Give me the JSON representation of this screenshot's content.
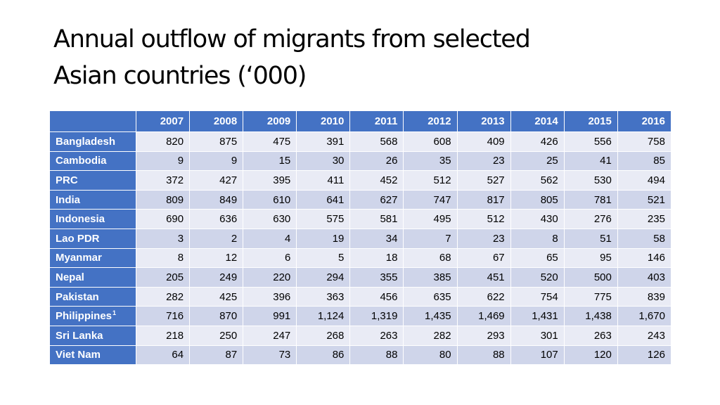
{
  "title_lines": [
    "Annual outflow of migrants from selected",
    "Asian countries (‘000)"
  ],
  "table": {
    "corner_label": "",
    "years": [
      "2007",
      "2008",
      "2009",
      "2010",
      "2011",
      "2012",
      "2013",
      "2014",
      "2015",
      "2016"
    ],
    "rows": [
      {
        "country": "Bangladesh",
        "footnote": "",
        "values": [
          "820",
          "875",
          "475",
          "391",
          "568",
          "608",
          "409",
          "426",
          "556",
          "758"
        ]
      },
      {
        "country": "Cambodia",
        "footnote": "",
        "values": [
          "9",
          "9",
          "15",
          "30",
          "26",
          "35",
          "23",
          "25",
          "41",
          "85"
        ]
      },
      {
        "country": "PRC",
        "footnote": "",
        "values": [
          "372",
          "427",
          "395",
          "411",
          "452",
          "512",
          "527",
          "562",
          "530",
          "494"
        ]
      },
      {
        "country": "India",
        "footnote": "",
        "values": [
          "809",
          "849",
          "610",
          "641",
          "627",
          "747",
          "817",
          "805",
          "781",
          "521"
        ]
      },
      {
        "country": "Indonesia",
        "footnote": "",
        "values": [
          "690",
          "636",
          "630",
          "575",
          "581",
          "495",
          "512",
          "430",
          "276",
          "235"
        ]
      },
      {
        "country": "Lao PDR",
        "footnote": "",
        "values": [
          "3",
          "2",
          "4",
          "19",
          "34",
          "7",
          "23",
          "8",
          "51",
          "58"
        ]
      },
      {
        "country": "Myanmar",
        "footnote": "",
        "values": [
          "8",
          "12",
          "6",
          "5",
          "18",
          "68",
          "67",
          "65",
          "95",
          "146"
        ]
      },
      {
        "country": "Nepal",
        "footnote": "",
        "values": [
          "205",
          "249",
          "220",
          "294",
          "355",
          "385",
          "451",
          "520",
          "500",
          "403"
        ]
      },
      {
        "country": "Pakistan",
        "footnote": "",
        "values": [
          "282",
          "425",
          "396",
          "363",
          "456",
          "635",
          "622",
          "754",
          "775",
          "839"
        ]
      },
      {
        "country": "Philippines",
        "footnote": "1",
        "values": [
          "716",
          "870",
          "991",
          "1,124",
          "1,319",
          "1,435",
          "1,469",
          "1,431",
          "1,438",
          "1,670"
        ]
      },
      {
        "country": "Sri Lanka",
        "footnote": "",
        "values": [
          "218",
          "250",
          "247",
          "268",
          "263",
          "282",
          "293",
          "301",
          "263",
          "243"
        ]
      },
      {
        "country": "Viet Nam",
        "footnote": "",
        "values": [
          "64",
          "87",
          "73",
          "86",
          "88",
          "80",
          "88",
          "107",
          "120",
          "126"
        ]
      }
    ]
  },
  "colors": {
    "header_blue": "#4472c4",
    "row_light": "#e9ebf5",
    "row_dark": "#cfd5ea"
  }
}
